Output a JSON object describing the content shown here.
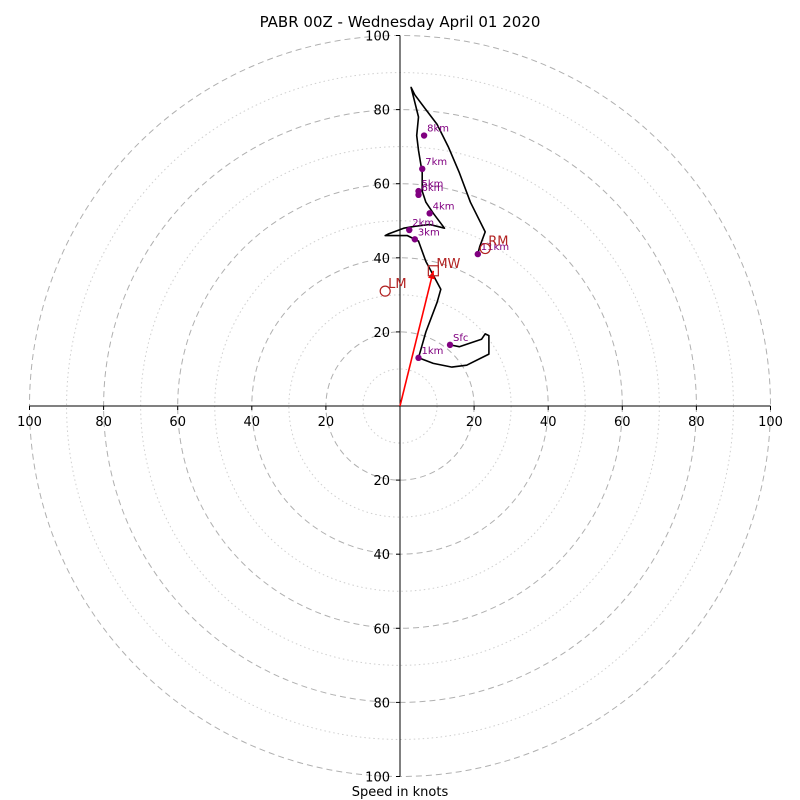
{
  "title": "PABR 00Z - Wednesday April 01 2020",
  "xlabel": "Speed in knots",
  "colors": {
    "hodograph": "#000000",
    "height_markers": "#800080",
    "storm_motion": "#b22222",
    "mean_wind_vector": "#ff0000",
    "rings": "#b0b0b0"
  },
  "chart_data": {
    "type": "hodograph",
    "title": "PABR 00Z - Wednesday April 01 2020",
    "xlabel": "Speed in knots",
    "xlim": [
      -100,
      100
    ],
    "ylim": [
      -100,
      100
    ],
    "grid": true,
    "ring_major": [
      20,
      40,
      60,
      80,
      100
    ],
    "ring_minor": [
      10,
      30,
      50,
      70,
      90
    ],
    "x_tick_labels": [
      "100",
      "80",
      "60",
      "40",
      "20",
      "20",
      "40",
      "60",
      "80",
      "100"
    ],
    "x_tick_values": [
      -100,
      -80,
      -60,
      -40,
      -20,
      20,
      40,
      60,
      80,
      100
    ],
    "y_tick_labels": [
      "100",
      "80",
      "60",
      "40",
      "20",
      "20",
      "40",
      "60",
      "80",
      "100"
    ],
    "y_tick_values": [
      100,
      80,
      60,
      40,
      20,
      -20,
      -40,
      -60,
      -80,
      -100
    ],
    "hodograph_u": [
      13.5,
      16,
      22,
      23,
      24,
      24,
      18,
      14,
      9,
      5,
      7,
      10,
      11,
      7,
      5,
      2,
      -1,
      -4,
      -3,
      1,
      4,
      8,
      10,
      12,
      9,
      7,
      6,
      6,
      5,
      4.5,
      5,
      4,
      3,
      4,
      7,
      10,
      13,
      16,
      19,
      23,
      21.5,
      21
    ],
    "hodograph_v": [
      16.5,
      16,
      18,
      19.5,
      19,
      14,
      11,
      10.5,
      11.5,
      13,
      20,
      28,
      31.5,
      39,
      44.5,
      46,
      46,
      46,
      46.5,
      48,
      48.5,
      49,
      48.5,
      48,
      52,
      55,
      58,
      63,
      69,
      73,
      78,
      82,
      86,
      84,
      80,
      76,
      70,
      63,
      55,
      47,
      43,
      41
    ],
    "height_markers": [
      {
        "label": "Sfc",
        "u": 13.5,
        "v": 16.5
      },
      {
        "label": "1km",
        "u": 5,
        "v": 13
      },
      {
        "label": "2km",
        "u": 2.5,
        "v": 47.5
      },
      {
        "label": "3km",
        "u": 4,
        "v": 45
      },
      {
        "label": "4km",
        "u": 8,
        "v": 52
      },
      {
        "label": "5km",
        "u": 5,
        "v": 58
      },
      {
        "label": "6km",
        "u": 5,
        "v": 57
      },
      {
        "label": "7km",
        "u": 6,
        "v": 64
      },
      {
        "label": "8km",
        "u": 6.5,
        "v": 73
      },
      {
        "label": "11km",
        "u": 21,
        "v": 41
      }
    ],
    "storm_motion": [
      {
        "label": "RM",
        "u": 23,
        "v": 42.5,
        "marker": "circle"
      },
      {
        "label": "LM",
        "u": -4,
        "v": 31,
        "marker": "circle"
      },
      {
        "label": "MW",
        "u": 9,
        "v": 36.5,
        "marker": "square"
      }
    ],
    "mean_wind_vector": {
      "u": 9,
      "v": 36.5
    }
  }
}
